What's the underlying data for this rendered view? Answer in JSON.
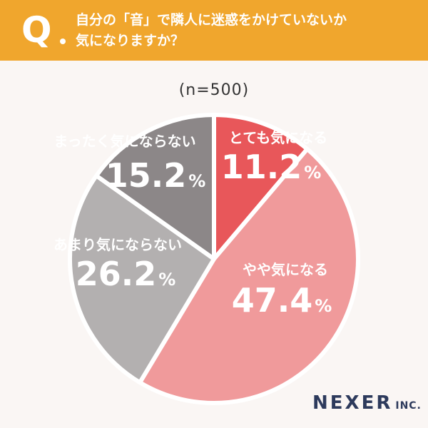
{
  "header": {
    "q_mark": "Q",
    "question_line1": "自分の「音」で隣人に迷惑をかけていないか",
    "question_line2": "気になりますか？",
    "color": "#f0a62d"
  },
  "sample_label": "(n=500)",
  "brand": {
    "name": "NEXER",
    "suffix": "INC."
  },
  "chart_data": {
    "type": "pie",
    "slices": [
      {
        "label": "とても気になる",
        "value": 11.2,
        "value_text": "11.2",
        "color": "#e8575a"
      },
      {
        "label": "やや気になる",
        "value": 47.4,
        "value_text": "47.4",
        "color": "#f09a9b"
      },
      {
        "label": "あまり気にならない",
        "value": 26.2,
        "value_text": "26.2",
        "color": "#b3b0b0"
      },
      {
        "label": "まったく気にならない",
        "value": 15.2,
        "value_text": "15.2",
        "color": "#8c8788"
      }
    ],
    "unit": "%",
    "start": "12 o'clock",
    "direction": "clockwise"
  }
}
